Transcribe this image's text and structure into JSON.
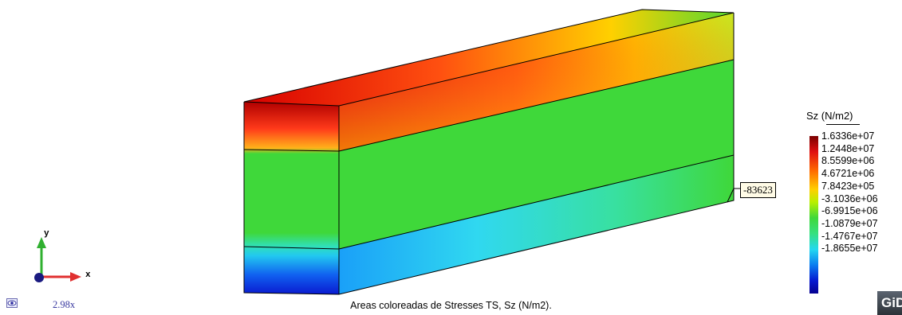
{
  "legend": {
    "title": "Sz (N/m2)",
    "values": [
      "1.6336e+07",
      "1.2448e+07",
      "8.5599e+06",
      "4.6721e+06",
      "7.8423e+05",
      "-3.1036e+06",
      "-6.9915e+06",
      "-1.0879e+07",
      "-1.4767e+07",
      "-1.8655e+07"
    ]
  },
  "value_label": "-83623",
  "caption": "Areas coloreadas de Stresses TS, Sz (N/m2).",
  "zoom": "2.98x",
  "axes": {
    "x_label": "x",
    "y_label": "y"
  },
  "brand": "GiD",
  "colors": {
    "max_red": "#cc0000",
    "mid_green": "#3fd83a",
    "min_blue": "#0a10c8",
    "axis_x": "#e03030",
    "axis_y": "#30b030",
    "axis_z": "#1a1a80"
  }
}
